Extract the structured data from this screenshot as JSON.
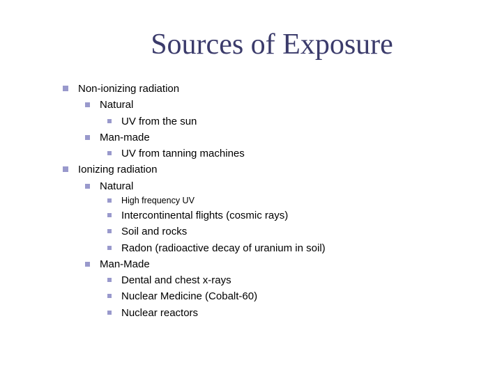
{
  "title": "Sources of Exposure",
  "colors": {
    "bullet": "#9999cc",
    "title": "#3b3b6b",
    "text": "#000000",
    "background": "#ffffff"
  },
  "typography": {
    "title_family": "Times New Roman",
    "title_size_pt": 32,
    "body_family": "Verdana",
    "body_size_pt": 11,
    "small_size_pt": 9
  },
  "items": [
    {
      "level": 0,
      "text": "Non-ionizing radiation"
    },
    {
      "level": 1,
      "text": "Natural"
    },
    {
      "level": 2,
      "text": "UV from the sun"
    },
    {
      "level": 1,
      "text": "Man-made"
    },
    {
      "level": 2,
      "text": "UV from tanning machines"
    },
    {
      "level": 0,
      "text": "Ionizing radiation"
    },
    {
      "level": 1,
      "text": "Natural"
    },
    {
      "level": 2,
      "text": "High frequency UV",
      "small": true
    },
    {
      "level": 2,
      "text": "Intercontinental flights (cosmic rays)"
    },
    {
      "level": 2,
      "text": "Soil and rocks"
    },
    {
      "level": 2,
      "text": "Radon (radioactive decay of uranium in soil)"
    },
    {
      "level": 1,
      "text": "Man-Made"
    },
    {
      "level": 2,
      "text": "Dental and chest x-rays"
    },
    {
      "level": 2,
      "text": "Nuclear Medicine (Cobalt-60)"
    },
    {
      "level": 2,
      "text": "Nuclear reactors"
    }
  ]
}
